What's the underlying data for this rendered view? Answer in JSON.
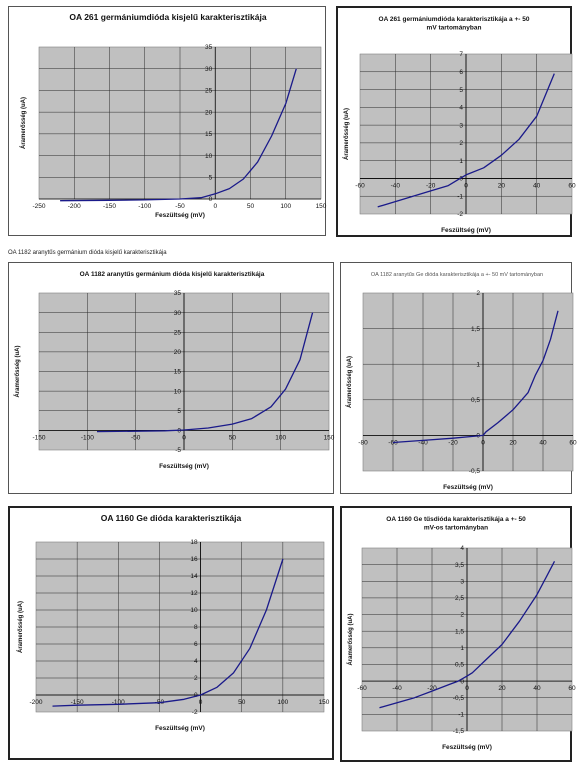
{
  "caption": "OA 1182 aranytűs germánium dióda kisjelű karakterisztikája",
  "chart_data": [
    {
      "type": "line",
      "title": "OA 261 germániumdióda kisjelű karakterisztikája",
      "xlabel": "Feszültség (mV)",
      "ylabel": "Áramerősség (uA)",
      "xlim": [
        -250,
        150
      ],
      "ylim": [
        0,
        35
      ],
      "xticks": [
        -250,
        -200,
        -150,
        -100,
        -50,
        0,
        50,
        100,
        150
      ],
      "yticks": [
        0,
        5,
        10,
        15,
        20,
        25,
        30,
        35
      ],
      "xtick_labels": [
        "-250",
        "-200",
        "-150",
        "-100",
        "-50",
        "0",
        "50",
        "100",
        "150"
      ],
      "ytick_labels": [
        "0",
        "5",
        "10",
        "15",
        "20",
        "25",
        "30",
        "35"
      ],
      "grid": true,
      "series": [
        {
          "color": "#1a1a8a",
          "x": [
            -220,
            -150,
            -100,
            -50,
            -20,
            0,
            20,
            40,
            60,
            80,
            100,
            115
          ],
          "y": [
            -0.4,
            -0.3,
            -0.2,
            0.0,
            0.3,
            1.2,
            2.4,
            4.6,
            8.5,
            14.5,
            22.0,
            30.0
          ]
        }
      ]
    },
    {
      "type": "line",
      "title": "OA 261 germániumdióda karakterisztikája a +- 50 mV tartományban",
      "xlabel": "Feszültség (mV)",
      "ylabel": "Áramerősség (uA)",
      "xlim": [
        -60,
        60
      ],
      "ylim": [
        -2,
        7
      ],
      "xticks": [
        -60,
        -40,
        -20,
        0,
        20,
        40,
        60
      ],
      "yticks": [
        -2,
        -1,
        0,
        1,
        2,
        3,
        4,
        5,
        6,
        7
      ],
      "xtick_labels": [
        "-60",
        "-40",
        "-20",
        "0",
        "20",
        "40",
        "60"
      ],
      "ytick_labels": [
        "-2",
        "-1",
        "0",
        "1",
        "2",
        "3",
        "4",
        "5",
        "6",
        "7"
      ],
      "grid": true,
      "series": [
        {
          "color": "#1a1a8a",
          "x": [
            -50,
            -40,
            -30,
            -20,
            -10,
            -5,
            0,
            10,
            20,
            30,
            40,
            50
          ],
          "y": [
            -1.6,
            -1.3,
            -1.0,
            -0.7,
            -0.4,
            -0.1,
            0.2,
            0.6,
            1.3,
            2.2,
            3.5,
            5.9
          ]
        }
      ]
    },
    {
      "type": "line",
      "title": "OA 1182 aranytűs germánium dióda kisjelű karakterisztikája",
      "xlabel": "Feszültség (mV)",
      "ylabel": "Áramerősség (uA)",
      "xlim": [
        -150,
        150
      ],
      "ylim": [
        -5,
        35
      ],
      "xticks": [
        -150,
        -100,
        -50,
        0,
        50,
        100,
        150
      ],
      "yticks": [
        -5,
        0,
        5,
        10,
        15,
        20,
        25,
        30,
        35
      ],
      "xtick_labels": [
        "-150",
        "-100",
        "-50",
        "0",
        "50",
        "100",
        "150"
      ],
      "ytick_labels": [
        "-5",
        "0",
        "5",
        "10",
        "15",
        "20",
        "25",
        "30",
        "35"
      ],
      "grid": true,
      "series": [
        {
          "color": "#1a1a8a",
          "x": [
            -90,
            -50,
            -20,
            0,
            25,
            50,
            70,
            90,
            105,
            120,
            133
          ],
          "y": [
            -0.3,
            -0.2,
            -0.1,
            0.1,
            0.6,
            1.6,
            3.0,
            6.0,
            10.5,
            18.0,
            30.0
          ]
        }
      ]
    },
    {
      "type": "line",
      "title": "OA 1182 aranytűs Ge dióda karakterisztikája a +- 50 mV tartományban",
      "xlabel": "Feszültség (mV)",
      "ylabel": "Áramerősség (uA)",
      "xlim": [
        -80,
        60
      ],
      "ylim": [
        -0.5,
        2
      ],
      "xticks": [
        -80,
        -60,
        -40,
        -20,
        0,
        20,
        40,
        60
      ],
      "yticks": [
        -0.5,
        0,
        0.5,
        1,
        1.5,
        2
      ],
      "xtick_labels": [
        "-80",
        "-60",
        "-40",
        "-20",
        "0",
        "20",
        "40",
        "60"
      ],
      "ytick_labels": [
        "-0,5",
        "0",
        "0,5",
        "1",
        "1,5",
        "2"
      ],
      "grid": true,
      "series": [
        {
          "color": "#1a1a8a",
          "x": [
            -60,
            -40,
            -20,
            -5,
            0,
            2,
            10,
            20,
            30,
            35,
            40,
            45,
            50
          ],
          "y": [
            -0.1,
            -0.07,
            -0.04,
            -0.01,
            0.0,
            0.05,
            0.18,
            0.36,
            0.6,
            0.85,
            1.05,
            1.35,
            1.75
          ]
        }
      ]
    },
    {
      "type": "line",
      "title": "OA 1160 Ge dióda karakterisztikája",
      "xlabel": "Feszültség (mV)",
      "ylabel": "Áramerősség (uA)",
      "xlim": [
        -200,
        150
      ],
      "ylim": [
        -2,
        18
      ],
      "xticks": [
        -200,
        -150,
        -100,
        -50,
        0,
        50,
        100,
        150
      ],
      "yticks": [
        -2,
        0,
        2,
        4,
        6,
        8,
        10,
        12,
        14,
        16,
        18
      ],
      "xtick_labels": [
        "-200",
        "-150",
        "-100",
        "-50",
        "0",
        "50",
        "100",
        "150"
      ],
      "ytick_labels": [
        "-2",
        "0",
        "2",
        "4",
        "6",
        "8",
        "10",
        "12",
        "14",
        "16",
        "18"
      ],
      "grid": true,
      "series": [
        {
          "color": "#1a1a8a",
          "x": [
            -180,
            -150,
            -100,
            -50,
            -20,
            0,
            20,
            40,
            60,
            80,
            100
          ],
          "y": [
            -1.3,
            -1.2,
            -1.1,
            -0.9,
            -0.5,
            0.0,
            0.9,
            2.6,
            5.5,
            10.0,
            16.0
          ]
        }
      ]
    },
    {
      "type": "line",
      "title": "OA 1160 Ge tűsdióda karakterisztikája a +- 50 mV-os tartományban",
      "xlabel": "Feszültség (mV)",
      "ylabel": "Áramerősség (uA)",
      "xlim": [
        -60,
        60
      ],
      "ylim": [
        -1.5,
        4
      ],
      "xticks": [
        -60,
        -40,
        -20,
        0,
        20,
        40,
        60
      ],
      "yticks": [
        -1.5,
        -1,
        -0.5,
        0,
        0.5,
        1,
        1.5,
        2,
        2.5,
        3,
        3.5,
        4
      ],
      "xtick_labels": [
        "-60",
        "-40",
        "-20",
        "0",
        "20",
        "40",
        "60"
      ],
      "ytick_labels": [
        "-1,5",
        "-1",
        "-0,5",
        "0",
        "0,5",
        "1",
        "1,5",
        "2",
        "2,5",
        "3",
        "3,5",
        "4"
      ],
      "grid": true,
      "series": [
        {
          "color": "#1a1a8a",
          "x": [
            -50,
            -40,
            -30,
            -20,
            -10,
            -5,
            0,
            3,
            10,
            20,
            30,
            40,
            45,
            50
          ],
          "y": [
            -0.8,
            -0.65,
            -0.5,
            -0.3,
            -0.1,
            0.0,
            0.15,
            0.25,
            0.6,
            1.1,
            1.8,
            2.6,
            3.1,
            3.6
          ]
        }
      ]
    }
  ]
}
